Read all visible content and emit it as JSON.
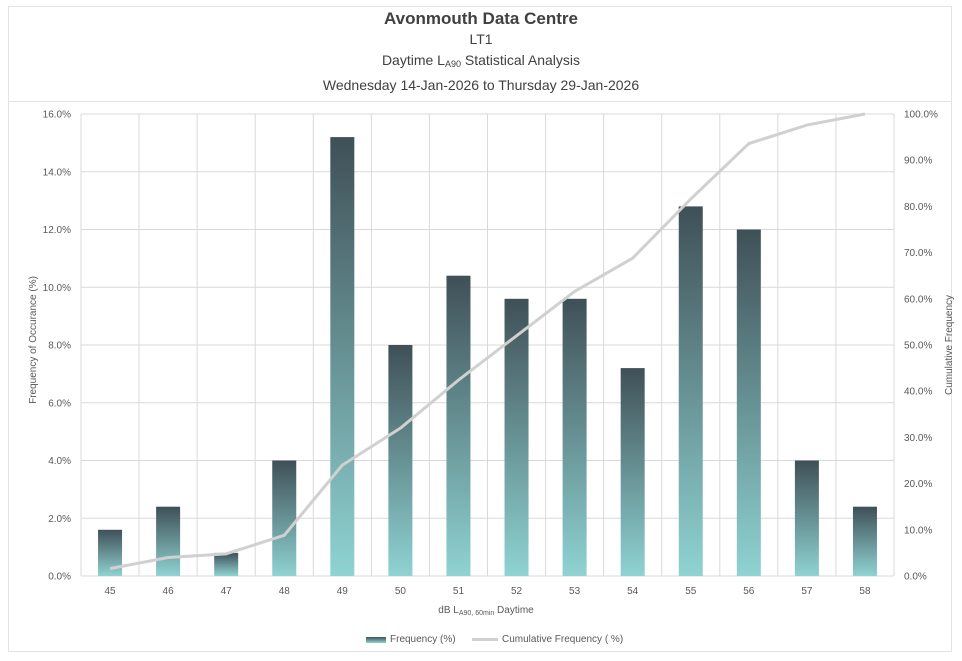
{
  "header": {
    "title": "Avonmouth Data Centre",
    "subtitle": "LT1",
    "analysis_prefix": "Daytime L",
    "analysis_sub": "A90",
    "analysis_suffix": " Statistical Analysis",
    "period": "Wednesday 14-Jan-2026 to Thursday 29-Jan-2026"
  },
  "chart_data": {
    "type": "bar",
    "categories": [
      "45",
      "46",
      "47",
      "48",
      "49",
      "50",
      "51",
      "52",
      "53",
      "54",
      "55",
      "56",
      "57",
      "58"
    ],
    "series": [
      {
        "name": "Frequency (%)",
        "type": "bar",
        "axis": "left",
        "values": [
          1.6,
          2.4,
          0.8,
          4.0,
          15.2,
          8.0,
          10.4,
          9.6,
          9.6,
          7.2,
          12.8,
          12.0,
          4.0,
          2.4
        ]
      },
      {
        "name": "Cumulative Frequency ( %)",
        "type": "line",
        "axis": "right",
        "values": [
          1.6,
          4.0,
          4.8,
          8.8,
          24.0,
          32.0,
          42.4,
          52.0,
          61.6,
          68.8,
          81.6,
          93.6,
          97.6,
          100.0
        ]
      }
    ],
    "ylim": [
      0,
      16
    ],
    "y2lim": [
      0,
      100
    ],
    "yticks": [
      "0.0%",
      "2.0%",
      "4.0%",
      "6.0%",
      "8.0%",
      "10.0%",
      "12.0%",
      "14.0%",
      "16.0%"
    ],
    "y2ticks": [
      "0.0%",
      "10.0%",
      "20.0%",
      "30.0%",
      "40.0%",
      "50.0%",
      "60.0%",
      "70.0%",
      "80.0%",
      "90.0%",
      "100.0%"
    ],
    "xlabel_prefix": "dB L",
    "xlabel_sub": "A90, 60min",
    "xlabel_suffix": " Daytime",
    "ylabel": "Frequency of Occurance (%)",
    "y2label": "Cumulative  Frequency",
    "grid": true,
    "legend_position": "bottom",
    "colors": {
      "bar_top": "#3f5057",
      "bar_bottom": "#8fd3d2",
      "line": "#d0d0d0",
      "grid": "#d9d9d9"
    }
  },
  "legend": {
    "bar_label": "Frequency (%)",
    "line_label": "Cumulative Frequency ( %)"
  }
}
